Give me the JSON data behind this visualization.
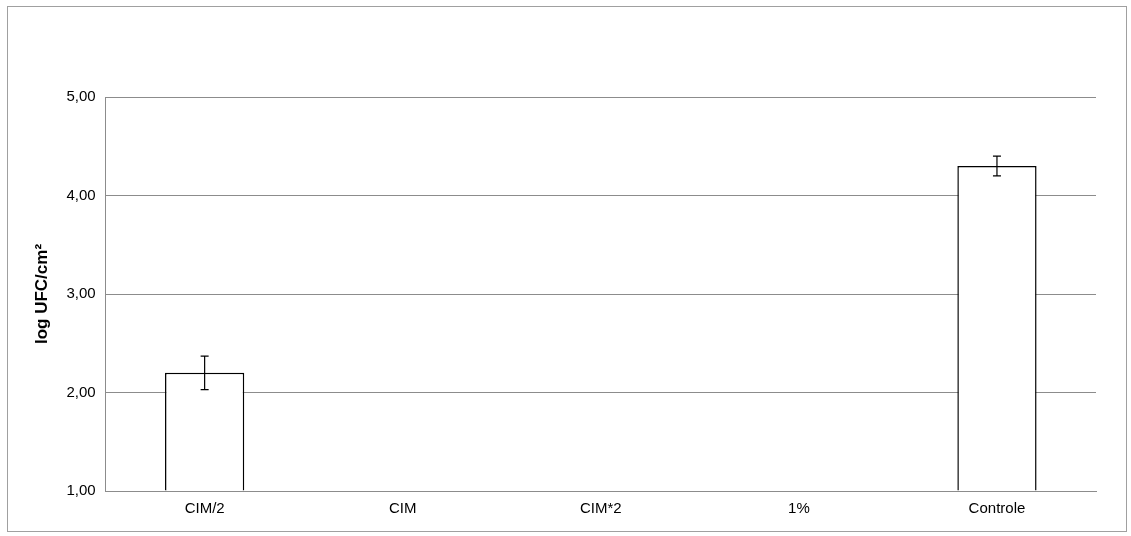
{
  "chart_data": {
    "type": "bar",
    "ylabel": "log UFC/cm²",
    "categories": [
      "CIM/2",
      "CIM",
      "CIM*2",
      "1%",
      "Controle"
    ],
    "values": [
      2.2,
      1,
      1,
      1,
      4.3
    ],
    "errors": [
      0.17,
      null,
      null,
      null,
      0.1
    ],
    "colors": [
      "#ffffff",
      "#4472c4",
      "#4472c4",
      "#4472c4",
      "#ffffff"
    ],
    "ylim": [
      1,
      5
    ],
    "yticks": [
      {
        "value": 1,
        "label": "1,00"
      },
      {
        "value": 2,
        "label": "2,00"
      },
      {
        "value": 3,
        "label": "3,00"
      },
      {
        "value": 4,
        "label": "4,00"
      },
      {
        "value": 5,
        "label": "5,00"
      }
    ],
    "grid": "y",
    "legend": false
  }
}
